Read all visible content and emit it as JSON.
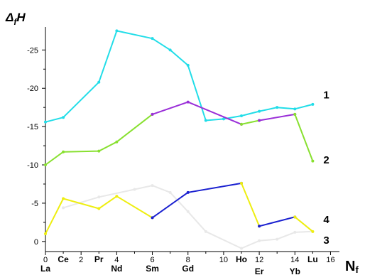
{
  "chart_data": {
    "type": "line",
    "ylabel": {
      "main": "Δ",
      "sub": "f",
      "tail": "H"
    },
    "xlabel": {
      "main": "N",
      "sub": "f"
    },
    "xlim": [
      0,
      16.5
    ],
    "ylim": [
      1.5,
      -28
    ],
    "x_ticks": [
      0,
      2,
      4,
      6,
      8,
      10,
      12,
      14,
      16
    ],
    "x_tick_labels": [
      "0",
      "2",
      "4",
      "6",
      "8",
      "10",
      "12",
      "14",
      "16"
    ],
    "y_ticks": [
      0,
      -5,
      -10,
      -15,
      -20,
      -25
    ],
    "y_tick_labels": [
      "0",
      "-5",
      "-10",
      "-15",
      "-20",
      "-25"
    ],
    "element_labels": [
      {
        "x": 0,
        "text": "La",
        "row": "bottom"
      },
      {
        "x": 1,
        "text": "Ce",
        "row": "top"
      },
      {
        "x": 3,
        "text": "Pr",
        "row": "top"
      },
      {
        "x": 4,
        "text": "Nd",
        "row": "bottom"
      },
      {
        "x": 6,
        "text": "Sm",
        "row": "bottom"
      },
      {
        "x": 8,
        "text": "Gd",
        "row": "bottom"
      },
      {
        "x": 11,
        "text": "Ho",
        "row": "top"
      },
      {
        "x": 12,
        "text": "Er",
        "row": "lower"
      },
      {
        "x": 14,
        "text": "Yb",
        "row": "lower"
      },
      {
        "x": 15,
        "text": "Lu",
        "row": "top"
      }
    ],
    "series": [
      {
        "label": "1",
        "color": "#22dde8",
        "segments": [
          {
            "color": "#22dde8",
            "points": [
              [
                0,
                -15.6
              ],
              [
                1,
                -16.2
              ],
              [
                3,
                -20.8
              ],
              [
                4,
                -27.5
              ],
              [
                6,
                -26.5
              ],
              [
                7,
                -25
              ],
              [
                8,
                -23
              ],
              [
                9,
                -15.8
              ],
              [
                10,
                -16
              ],
              [
                11,
                -16.4
              ],
              [
                12,
                -17
              ],
              [
                13,
                -17.5
              ],
              [
                14,
                -17.3
              ],
              [
                15,
                -17.9
              ]
            ]
          }
        ],
        "label_x": 15.6,
        "label_y": -18.7
      },
      {
        "label": "2",
        "color": "#88e030",
        "segments": [
          {
            "color": "#88e030",
            "points": [
              [
                0,
                -10
              ],
              [
                1,
                -11.7
              ],
              [
                3,
                -11.8
              ],
              [
                4,
                -13
              ],
              [
                6,
                -16.6
              ]
            ]
          },
          {
            "color": "#9a2fd8",
            "points": [
              [
                6,
                -16.6
              ],
              [
                8,
                -18.2
              ],
              [
                11,
                -15.3
              ]
            ]
          },
          {
            "color": "#88e030",
            "points": [
              [
                11,
                -15.3
              ],
              [
                12,
                -15.8
              ]
            ]
          },
          {
            "color": "#9a2fd8",
            "points": [
              [
                12,
                -15.8
              ],
              [
                14,
                -16.6
              ]
            ]
          },
          {
            "color": "#88e030",
            "points": [
              [
                14,
                -16.6
              ],
              [
                15,
                -10.5
              ]
            ]
          }
        ],
        "label_x": 15.6,
        "label_y": -10.2
      },
      {
        "label": "3",
        "color": "#e8e8e8",
        "segments": [
          {
            "color": "#e8e8e8",
            "points": [
              [
                1,
                -4.4
              ],
              [
                3,
                -5.8
              ],
              [
                5,
                -6.8
              ],
              [
                6,
                -7.3
              ],
              [
                7,
                -6.4
              ],
              [
                8,
                -3.9
              ],
              [
                9,
                -1.3
              ],
              [
                11,
                0.9
              ],
              [
                12,
                -0.1
              ],
              [
                13,
                -0.3
              ],
              [
                14,
                -1.2
              ],
              [
                15,
                -1.3
              ]
            ]
          }
        ],
        "label_x": 15.6,
        "label_y": 0.3
      },
      {
        "label": "4",
        "color": "#eeee10",
        "segments": [
          {
            "color": "#eeee10",
            "points": [
              [
                0,
                -1
              ],
              [
                1,
                -5.6
              ],
              [
                3,
                -4.3
              ],
              [
                4,
                -5.9
              ],
              [
                6,
                -3.1
              ]
            ]
          },
          {
            "color": "#1a20d0",
            "points": [
              [
                6,
                -3.1
              ],
              [
                8,
                -6.4
              ],
              [
                11,
                -7.6
              ]
            ]
          },
          {
            "color": "#eeee10",
            "points": [
              [
                11,
                -7.6
              ],
              [
                12,
                -2
              ]
            ]
          },
          {
            "color": "#1a20d0",
            "points": [
              [
                12,
                -2
              ],
              [
                14,
                -3.2
              ]
            ]
          },
          {
            "color": "#eeee10",
            "points": [
              [
                14,
                -3.2
              ],
              [
                15,
                -1.3
              ]
            ]
          }
        ],
        "label_x": 15.6,
        "label_y": -2.4
      }
    ]
  }
}
